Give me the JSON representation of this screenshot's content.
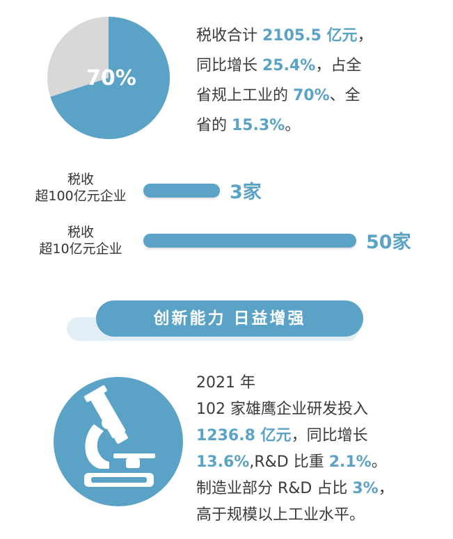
{
  "colors": {
    "accent": "#5aa3c7",
    "pie_rest": "#d8d8d8",
    "banner_back": "#e1eef5",
    "text": "#3a3a3a"
  },
  "pie": {
    "share": 0.7,
    "label": "70%"
  },
  "summary": {
    "seg1": "税收合计 ",
    "v1": "2105.5 亿元",
    "seg2": "，",
    "seg3": "同比增长 ",
    "v2": "25.4%",
    "seg4": "，占全",
    "seg5": "省规上工业的 ",
    "v3": "70%",
    "seg6": "、全",
    "seg7": "省的 ",
    "v4": "15.3%",
    "seg8": "。"
  },
  "bars": [
    {
      "label_line1": "税收",
      "label_line2": "超100亿元企业",
      "count": 3,
      "value_text": "3家"
    },
    {
      "label_line1": "税收",
      "label_line2": "超10亿元企业",
      "count": 50,
      "value_text": "50家"
    }
  ],
  "section": {
    "title": "创新能力 日益增强",
    "icon": "microscope-icon"
  },
  "rd": {
    "l1": "2021 年",
    "l2": "102 家雄鹰企业研发投入",
    "v1": "1236.8 亿元",
    "l3": "，同比增长",
    "v2": "13.6%",
    "l4": ",R&D 比重 ",
    "v3": "2.1%",
    "l5": "。",
    "l6": "制造业部分 R&D 占比 ",
    "v4": "3%",
    "l7": "，",
    "l8": "高于规模以上工业水平。"
  }
}
